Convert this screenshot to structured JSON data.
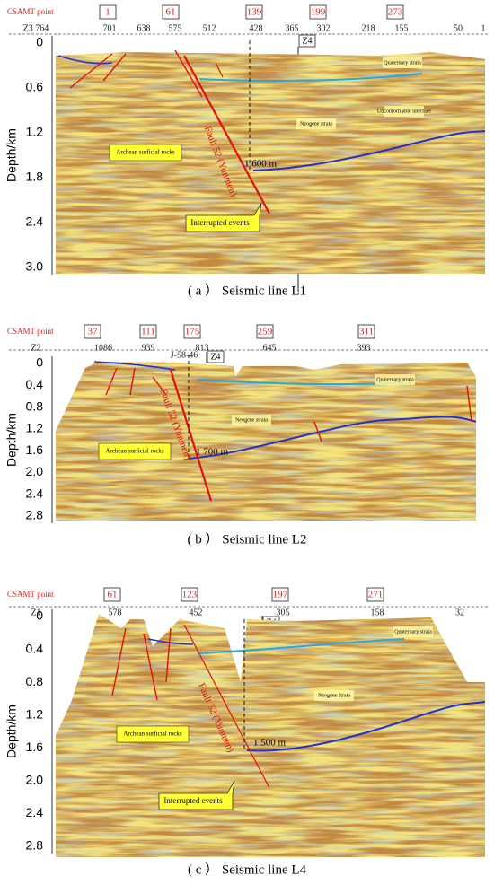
{
  "panels": [
    {
      "csamt_label": "CSAMT point",
      "csamt_points": [
        "1",
        "61",
        "139",
        "199",
        "273"
      ],
      "traces": [
        "Z3 764",
        "701",
        "638",
        "575",
        "512",
        "428",
        "365",
        "302",
        "218",
        "155",
        "50",
        "1"
      ],
      "marker": "Z4",
      "depth_label": "Depth/km",
      "depth_ticks": [
        "0",
        "0.6",
        "1.2",
        "1.8",
        "2.4",
        "3.0"
      ],
      "annotations": [
        "Quaternary strata",
        "Unconformable interface",
        "Neogene strata",
        "Archean surficial rocks",
        "Fault 52 (Yunmen)",
        "1 600 m",
        "Interrupted events"
      ],
      "caption": "( a ） Seismic line L1"
    },
    {
      "csamt_label": "CSAMT point",
      "csamt_points": [
        "37",
        "111",
        "175",
        "259",
        "311"
      ],
      "traces": [
        "Z2",
        "1086",
        "939",
        "813",
        "645",
        "393",
        "J-58-46"
      ],
      "marker": "Z4",
      "depth_label": "Depth/km",
      "depth_ticks": [
        "0",
        "0.4",
        "0.8",
        "1.2",
        "1.6",
        "2.0",
        "2.4",
        "2.8"
      ],
      "annotations": [
        "Quaternary strata",
        "Neogene strata",
        "Archean surficial rocks",
        "Fault 52 (Yunmen)",
        "1 700 m"
      ],
      "caption": "( b ） Seismic line L2"
    },
    {
      "csamt_label": "CSAMT point",
      "csamt_points": [
        "61",
        "123",
        "197",
        "271"
      ],
      "traces": [
        "Z1",
        "578",
        "452",
        "305",
        "158",
        "32"
      ],
      "marker": "Z4",
      "depth_label": "Depth/km",
      "depth_ticks": [
        "0",
        "0.4",
        "0.8",
        "1.2",
        "1.6",
        "2.0",
        "2.4",
        "2.8"
      ],
      "annotations": [
        "Quaternary strata",
        "Neogene strata",
        "Archean surficial rocks",
        "Fault 52 (Yunmen)",
        "1 500 m",
        "Interrupted events"
      ],
      "caption": "( c ） Seismic line L4"
    }
  ]
}
